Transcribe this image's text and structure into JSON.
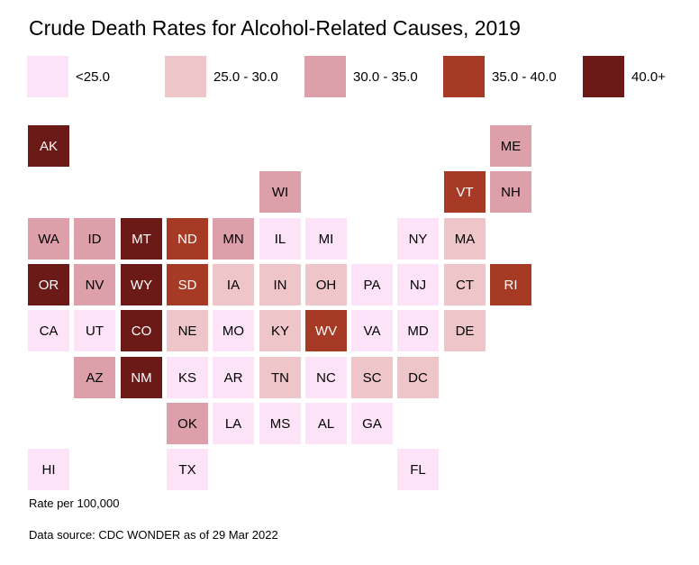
{
  "title": "Crude Death Rates for Alcohol-Related Causes, 2019",
  "colors": {
    "bin1": "#fde3f7",
    "bin2": "#eec6c9",
    "bin3": "#dda0ab",
    "bin4": "#a63a24",
    "bin5": "#6c1a18"
  },
  "legend": [
    {
      "label": "<25.0",
      "bin": "bin1"
    },
    {
      "label": "25.0 - 30.0",
      "bin": "bin2"
    },
    {
      "label": "30.0 - 35.0",
      "bin": "bin3"
    },
    {
      "label": "35.0 - 40.0",
      "bin": "bin4"
    },
    {
      "label": "40.0+",
      "bin": "bin5"
    }
  ],
  "states": [
    {
      "abbr": "AK",
      "bin": "bin5"
    },
    {
      "abbr": "ME",
      "bin": "bin3"
    },
    {
      "abbr": "WI",
      "bin": "bin3"
    },
    {
      "abbr": "VT",
      "bin": "bin4"
    },
    {
      "abbr": "NH",
      "bin": "bin3"
    },
    {
      "abbr": "WA",
      "bin": "bin3"
    },
    {
      "abbr": "ID",
      "bin": "bin3"
    },
    {
      "abbr": "MT",
      "bin": "bin5"
    },
    {
      "abbr": "ND",
      "bin": "bin4"
    },
    {
      "abbr": "MN",
      "bin": "bin3"
    },
    {
      "abbr": "IL",
      "bin": "bin1"
    },
    {
      "abbr": "MI",
      "bin": "bin1"
    },
    {
      "abbr": "NY",
      "bin": "bin1"
    },
    {
      "abbr": "MA",
      "bin": "bin2"
    },
    {
      "abbr": "OR",
      "bin": "bin5"
    },
    {
      "abbr": "NV",
      "bin": "bin3"
    },
    {
      "abbr": "WY",
      "bin": "bin5"
    },
    {
      "abbr": "SD",
      "bin": "bin4"
    },
    {
      "abbr": "IA",
      "bin": "bin2"
    },
    {
      "abbr": "IN",
      "bin": "bin2"
    },
    {
      "abbr": "OH",
      "bin": "bin2"
    },
    {
      "abbr": "PA",
      "bin": "bin1"
    },
    {
      "abbr": "NJ",
      "bin": "bin1"
    },
    {
      "abbr": "CT",
      "bin": "bin2"
    },
    {
      "abbr": "RI",
      "bin": "bin4"
    },
    {
      "abbr": "CA",
      "bin": "bin1"
    },
    {
      "abbr": "UT",
      "bin": "bin1"
    },
    {
      "abbr": "CO",
      "bin": "bin5"
    },
    {
      "abbr": "NE",
      "bin": "bin2"
    },
    {
      "abbr": "MO",
      "bin": "bin1"
    },
    {
      "abbr": "KY",
      "bin": "bin2"
    },
    {
      "abbr": "WV",
      "bin": "bin4"
    },
    {
      "abbr": "VA",
      "bin": "bin1"
    },
    {
      "abbr": "MD",
      "bin": "bin1"
    },
    {
      "abbr": "DE",
      "bin": "bin2"
    },
    {
      "abbr": "AZ",
      "bin": "bin3"
    },
    {
      "abbr": "NM",
      "bin": "bin5"
    },
    {
      "abbr": "KS",
      "bin": "bin1"
    },
    {
      "abbr": "AR",
      "bin": "bin1"
    },
    {
      "abbr": "TN",
      "bin": "bin2"
    },
    {
      "abbr": "NC",
      "bin": "bin1"
    },
    {
      "abbr": "SC",
      "bin": "bin2"
    },
    {
      "abbr": "DC",
      "bin": "bin2"
    },
    {
      "abbr": "OK",
      "bin": "bin3"
    },
    {
      "abbr": "LA",
      "bin": "bin1"
    },
    {
      "abbr": "MS",
      "bin": "bin1"
    },
    {
      "abbr": "AL",
      "bin": "bin1"
    },
    {
      "abbr": "GA",
      "bin": "bin1"
    },
    {
      "abbr": "HI",
      "bin": "bin1"
    },
    {
      "abbr": "TX",
      "bin": "bin1"
    },
    {
      "abbr": "FL",
      "bin": "bin1"
    }
  ],
  "footer": {
    "units": "Rate per 100,000",
    "source": "Data source: CDC WONDER as of 29 Mar 2022"
  }
}
